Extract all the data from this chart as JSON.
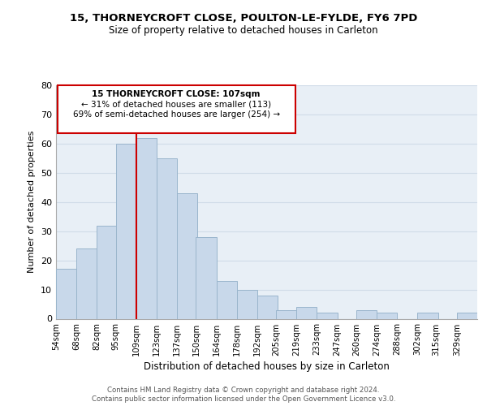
{
  "title1": "15, THORNEYCROFT CLOSE, POULTON-LE-FYLDE, FY6 7PD",
  "title2": "Size of property relative to detached houses in Carleton",
  "xlabel": "Distribution of detached houses by size in Carleton",
  "ylabel": "Number of detached properties",
  "bar_color": "#c8d8ea",
  "bar_edge_color": "#9ab5cc",
  "vline_color": "#cc0000",
  "vline_x": 109,
  "categories": [
    "54sqm",
    "68sqm",
    "82sqm",
    "95sqm",
    "109sqm",
    "123sqm",
    "137sqm",
    "150sqm",
    "164sqm",
    "178sqm",
    "192sqm",
    "205sqm",
    "219sqm",
    "233sqm",
    "247sqm",
    "260sqm",
    "274sqm",
    "288sqm",
    "302sqm",
    "315sqm",
    "329sqm"
  ],
  "bin_edges": [
    54,
    68,
    82,
    95,
    109,
    123,
    137,
    150,
    164,
    178,
    192,
    205,
    219,
    233,
    247,
    260,
    274,
    288,
    302,
    315,
    329
  ],
  "bin_width": 14,
  "values": [
    17,
    24,
    32,
    60,
    62,
    55,
    43,
    28,
    13,
    10,
    8,
    3,
    4,
    2,
    0,
    3,
    2,
    0,
    2,
    0,
    2
  ],
  "ylim": [
    0,
    80
  ],
  "yticks": [
    0,
    10,
    20,
    30,
    40,
    50,
    60,
    70,
    80
  ],
  "annotation_line1": "15 THORNEYCROFT CLOSE: 107sqm",
  "annotation_line2": "← 31% of detached houses are smaller (113)",
  "annotation_line3": "69% of semi-detached houses are larger (254) →",
  "annotation_box_color": "#ffffff",
  "annotation_box_edge": "#cc0000",
  "footer1": "Contains HM Land Registry data © Crown copyright and database right 2024.",
  "footer2": "Contains public sector information licensed under the Open Government Licence v3.0.",
  "grid_color": "#d0dce8",
  "background_color": "#e8eff6"
}
